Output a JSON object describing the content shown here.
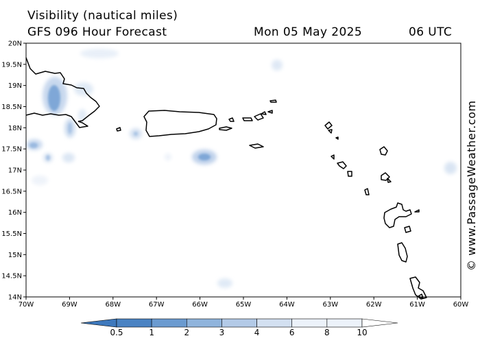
{
  "header": {
    "title": "Visibility (nautical miles)",
    "subtitle": "GFS 096 Hour Forecast",
    "date": "Mon 05 May 2025",
    "time": "06 UTC"
  },
  "watermark": "© www.PassageWeather.com",
  "map": {
    "lon_range": [
      -70,
      -60
    ],
    "lat_range": [
      14,
      20
    ],
    "lat_labels": [
      "20N",
      "19.5N",
      "19N",
      "18.5N",
      "18N",
      "17.5N",
      "17N",
      "16.5N",
      "16N",
      "15.5N",
      "15N",
      "14.5N",
      "14N"
    ],
    "lon_labels": [
      "70W",
      "69W",
      "68W",
      "67W",
      "66W",
      "65W",
      "64W",
      "63W",
      "62W",
      "61W",
      "60W"
    ]
  },
  "colorbar": {
    "labels": [
      "0.5",
      "1",
      "2",
      "3",
      "4",
      "6",
      "8",
      "10"
    ],
    "colors": [
      "#3e79bd",
      "#4a83c3",
      "#6b9bd0",
      "#90b4dc",
      "#b3cae7",
      "#d3e0f1",
      "#ecf2fa",
      "#ffffff"
    ]
  }
}
